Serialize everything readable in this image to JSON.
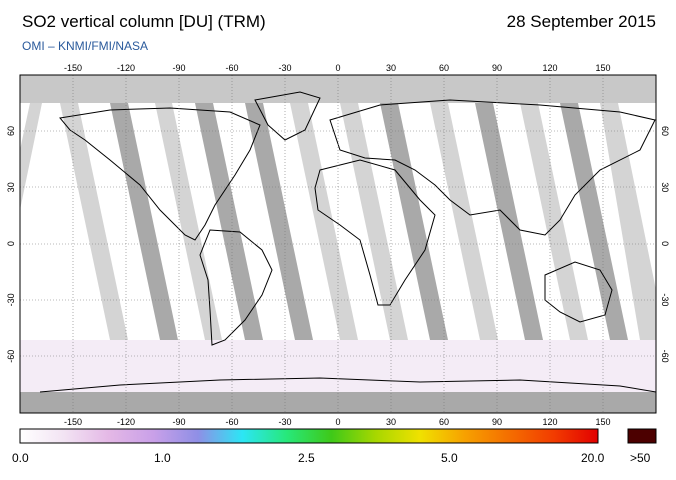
{
  "header": {
    "title": "SO2 vertical column [DU] (TRM)",
    "date": "28 September 2015",
    "credit": "OMI  –  KNMI/FMI/NASA"
  },
  "map": {
    "projection": "plate-carree",
    "lon_ticks": [
      "-150",
      "-120",
      "-90",
      "-60",
      "-30",
      "0",
      "30",
      "60",
      "90",
      "120",
      "150"
    ],
    "lat_ticks": [
      "60",
      "30",
      "0",
      "-30",
      "-60"
    ],
    "colors": {
      "no_data": "#c8c8c8",
      "swath_gap": "#a9a9a9",
      "background": "#ffffff",
      "coastline": "#000000",
      "grid": "#777777"
    }
  },
  "colorbar": {
    "labels": [
      "0.0",
      "1.0",
      "2.5",
      "5.0",
      "20.0",
      ">50"
    ],
    "stops": [
      "#ffffff",
      "#f2e3f3",
      "#e4b8e6",
      "#c9a0e8",
      "#8f8fe6",
      "#2ce6f5",
      "#27e87a",
      "#3ec919",
      "#a7d700",
      "#f0e100",
      "#f7a100",
      "#f46e00",
      "#f23c00",
      "#e20000"
    ],
    "overflow_color": "#4c0000"
  }
}
